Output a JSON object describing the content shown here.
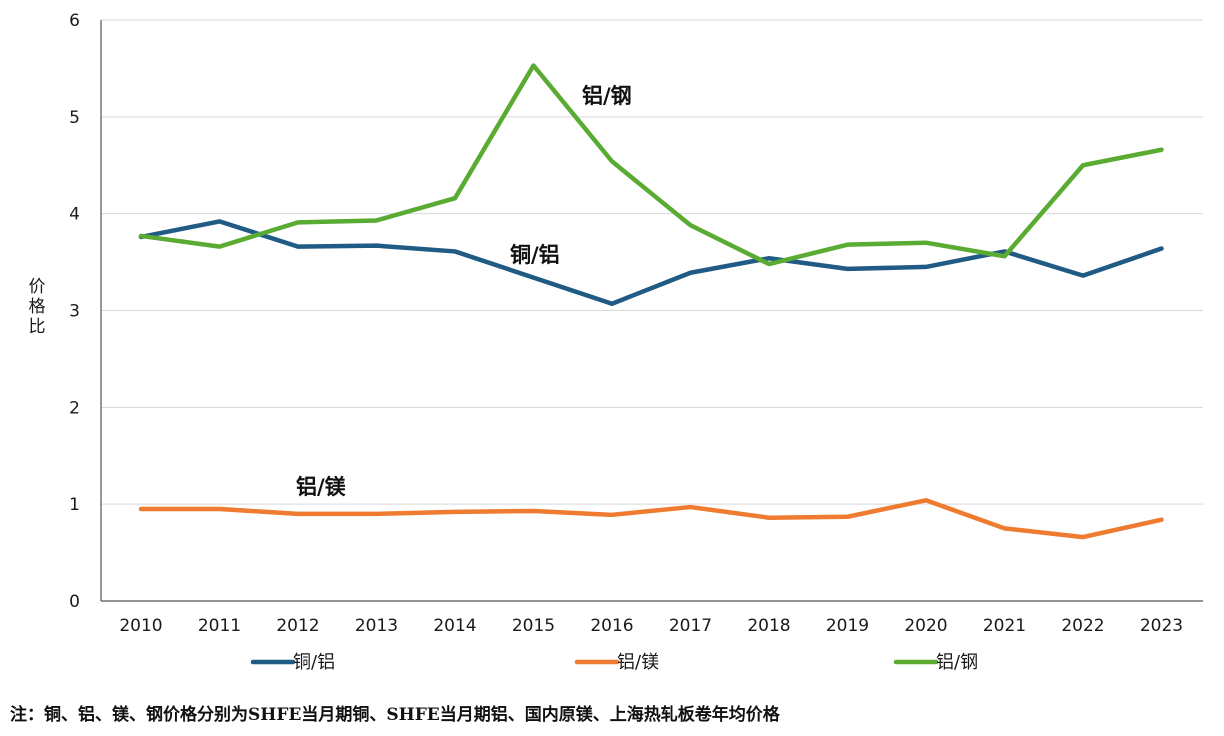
{
  "chart_data": {
    "type": "line",
    "x": [
      "2010",
      "2011",
      "2012",
      "2013",
      "2014",
      "2015",
      "2016",
      "2017",
      "2018",
      "2019",
      "2020",
      "2021",
      "2022",
      "2023"
    ],
    "ylabel": "价格比",
    "ylim": [
      0,
      6
    ],
    "yticks": [
      "0",
      "1",
      "2",
      "3",
      "4",
      "5",
      "6"
    ],
    "grid": true,
    "legend_position": "bottom",
    "series": [
      {
        "name": "铜/铝",
        "color": "#1f5b85",
        "label": "铜/铝",
        "values": [
          3.76,
          3.92,
          3.66,
          3.67,
          3.61,
          3.34,
          3.07,
          3.39,
          3.54,
          3.43,
          3.45,
          3.61,
          3.36,
          3.64
        ]
      },
      {
        "name": "铝/镁",
        "color": "#ee7b30",
        "label": "铝/镁",
        "values": [
          0.95,
          0.95,
          0.9,
          0.9,
          0.92,
          0.93,
          0.89,
          0.97,
          0.86,
          0.87,
          1.04,
          0.75,
          0.66,
          0.84
        ]
      },
      {
        "name": "铝/钢",
        "color": "#5aab32",
        "label": "铝/钢",
        "values": [
          3.77,
          3.66,
          3.91,
          3.93,
          4.16,
          5.53,
          4.54,
          3.88,
          3.48,
          3.68,
          3.7,
          3.56,
          4.5,
          4.66
        ]
      }
    ]
  },
  "note": "注：铜、铝、镁、钢价格分别为SHFE当月期铜、SHFE当月期铝、国内原镁、上海热轧板卷年均价格"
}
